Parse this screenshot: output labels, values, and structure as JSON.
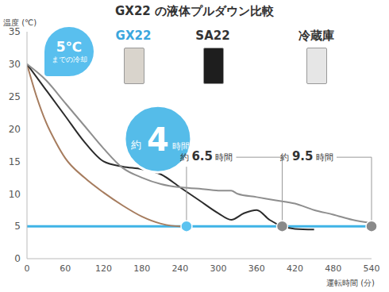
{
  "chart_data": {
    "type": "line",
    "title": "GX22 の液体プルダウン比較",
    "x_label": "運転時間 (分)",
    "y_label": "温度 (℃)",
    "xlim": [
      0,
      540
    ],
    "xticks": [
      0,
      60,
      120,
      180,
      240,
      300,
      360,
      420,
      480,
      540
    ],
    "ylim": [
      0,
      35
    ],
    "yticks": [
      0,
      5,
      10,
      15,
      20,
      25,
      30,
      35
    ],
    "grid": false,
    "series": [
      {
        "name": "GX22",
        "color": "#a67c5e",
        "x": [
          0,
          15,
          30,
          45,
          60,
          90,
          120,
          150,
          180,
          210,
          240,
          250
        ],
        "values": [
          30,
          25,
          21,
          18,
          15.5,
          12.5,
          10.2,
          8.2,
          6.5,
          5.4,
          5.0,
          5.0
        ]
      },
      {
        "name": "SA22",
        "color": "#2b2b2b",
        "x": [
          0,
          30,
          60,
          90,
          120,
          150,
          180,
          210,
          240,
          270,
          300,
          320,
          340,
          360,
          380,
          400,
          420,
          450
        ],
        "values": [
          30,
          26,
          22,
          18,
          15,
          14.2,
          13.8,
          13,
          11,
          9,
          7,
          6,
          7,
          7.5,
          6,
          5,
          4.6,
          4.5
        ]
      },
      {
        "name": "冷蔵庫",
        "color": "#8e8e8e",
        "x": [
          0,
          30,
          60,
          90,
          120,
          150,
          180,
          210,
          240,
          270,
          300,
          320,
          330,
          360,
          390,
          420,
          450,
          480,
          510,
          540
        ],
        "values": [
          30,
          27.5,
          24,
          20.5,
          17,
          14,
          12.5,
          11.5,
          11,
          10.8,
          10.5,
          10.5,
          10,
          9.5,
          9,
          8.5,
          7.5,
          6.8,
          6,
          5.5
        ]
      }
    ],
    "reference_line": {
      "value": 5,
      "color": "#3fb3e6"
    },
    "callout": {
      "lines": [
        "5℃",
        "までの冷却"
      ]
    },
    "annotations": [
      {
        "series": "GX22",
        "x": 250,
        "y": 5,
        "text": [
          "約",
          "4",
          "時間"
        ],
        "color": "#5cc3f0"
      },
      {
        "series": "SA22",
        "x": 400,
        "y": 5,
        "text": [
          "約",
          "6.5",
          "時間"
        ],
        "color": "#8a8a8a"
      },
      {
        "series": "冷蔵庫",
        "x": 540,
        "y": 5,
        "text": [
          "約",
          "9.5",
          "時間"
        ],
        "color": "#8a8a8a"
      }
    ]
  }
}
